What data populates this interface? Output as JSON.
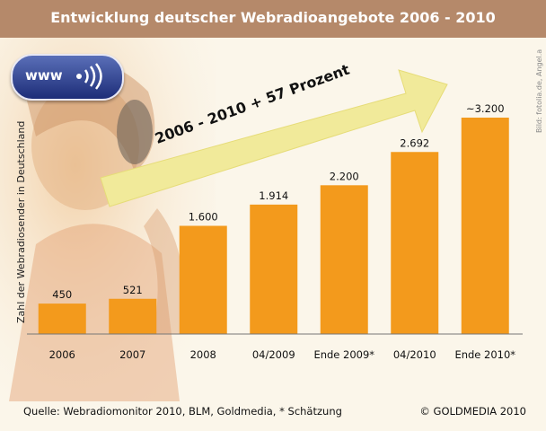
{
  "title": "Entwicklung deutscher Webradioangebote 2006 - 2010",
  "badge_text": "www",
  "ylabel": "Zahl der Webradiosender in Deutschland",
  "credit": "Bild: fotolia.de, Angel.a",
  "arrow_label": "2006 - 2010   + 57 Prozent",
  "source": "Quelle: Webradiomonitor 2010, BLM, Goldmedia, * Schätzung",
  "copyright": "© GOLDMEDIA 2010",
  "colors": {
    "bar": "#f39a1c",
    "title_bar": "#b5896a",
    "arrow": "#f1ea9a",
    "background": "#fbf6ea"
  },
  "chart_data": {
    "type": "bar",
    "title": "Entwicklung deutscher Webradioangebote 2006 - 2010",
    "ylabel": "Zahl der Webradiosender in Deutschland",
    "categories": [
      "2006",
      "2007",
      "2008",
      "04/2009",
      "Ende 2009*",
      "04/2010",
      "Ende 2010*"
    ],
    "values": [
      450,
      521,
      1600,
      1914,
      2200,
      2692,
      3200
    ],
    "value_labels": [
      "450",
      "521",
      "1.600",
      "1.914",
      "2.200",
      "2.692",
      "~3.200"
    ],
    "ylim": [
      0,
      3200
    ],
    "grid": false
  }
}
